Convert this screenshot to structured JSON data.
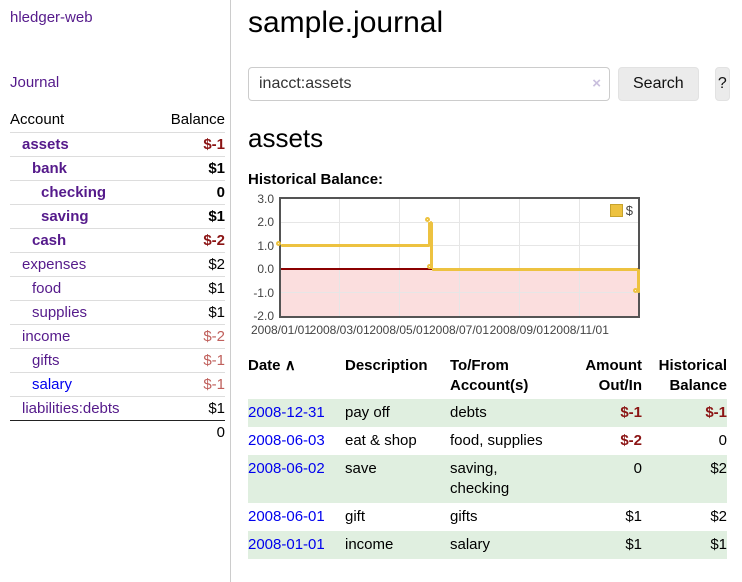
{
  "app": {
    "brand": "hledger-web",
    "nav_journal": "Journal"
  },
  "colors": {
    "link_purple": "#551a8b",
    "link_blue": "#0000ee",
    "negative_strong": "#8b1414",
    "negative_soft": "#c0605c",
    "row_stripe_green": "#e0efe0",
    "series_yellow": "#edc240"
  },
  "sidebar": {
    "headers": {
      "account": "Account",
      "balance": "Balance"
    },
    "accounts": [
      {
        "name": "assets",
        "balance": "$-1"
      },
      {
        "name": "bank",
        "balance": "$1"
      },
      {
        "name": "checking",
        "balance": "0"
      },
      {
        "name": "saving",
        "balance": "$1"
      },
      {
        "name": "cash",
        "balance": "$-2"
      },
      {
        "name": "expenses",
        "balance": "$2"
      },
      {
        "name": "food",
        "balance": "$1"
      },
      {
        "name": "supplies",
        "balance": "$1"
      },
      {
        "name": "income",
        "balance": "$-2"
      },
      {
        "name": "gifts",
        "balance": "$-1"
      },
      {
        "name": "salary",
        "balance": "$-1"
      },
      {
        "name": "liabilities:debts",
        "balance": "$1"
      }
    ],
    "total": "0"
  },
  "main": {
    "title": "sample.journal",
    "search": {
      "value": "inacct:assets",
      "clear_icon": "×",
      "button": "Search",
      "help": "?"
    },
    "account_heading": "assets",
    "section_label": "Historical Balance:"
  },
  "chart_data": {
    "type": "line",
    "title": "Historical Balance:",
    "series": [
      {
        "name": "$",
        "color": "#edc240",
        "step": true,
        "points": [
          [
            "2008-01-01",
            1
          ],
          [
            "2008-06-01",
            2
          ],
          [
            "2008-06-03",
            0
          ],
          [
            "2008-12-31",
            -1
          ]
        ]
      }
    ],
    "xlim": [
      "2008-01-01",
      "2008-12-31"
    ],
    "ylim": [
      -2,
      3
    ],
    "y_ticks": [
      3.0,
      2.0,
      1.0,
      0.0,
      -1.0,
      -2.0
    ],
    "x_ticks": [
      "2008/01/01",
      "2008/03/01",
      "2008/05/01",
      "2008/07/01",
      "2008/09/01",
      "2008/11/01"
    ],
    "zero_line_color": "#8b0000",
    "negative_region_color": "#fbdede",
    "grid": true,
    "legend_position": "top-right"
  },
  "register": {
    "headers": [
      "Date",
      "Description",
      "To/From Account(s)",
      "Amount Out/In",
      "Historical Balance"
    ],
    "sort_icon": "∧",
    "rows": [
      {
        "date": "2008-12-31",
        "description": "pay off",
        "accounts": "debts",
        "amount": "$-1",
        "balance": "$-1"
      },
      {
        "date": "2008-06-03",
        "description": "eat & shop",
        "accounts": "food, supplies",
        "amount": "$-2",
        "balance": "0"
      },
      {
        "date": "2008-06-02",
        "description": "save",
        "accounts": "saving, checking",
        "amount": "0",
        "balance": "$2"
      },
      {
        "date": "2008-06-01",
        "description": "gift",
        "accounts": "gifts",
        "amount": "$1",
        "balance": "$2"
      },
      {
        "date": "2008-01-01",
        "description": "income",
        "accounts": "salary",
        "amount": "$1",
        "balance": "$1"
      }
    ]
  }
}
